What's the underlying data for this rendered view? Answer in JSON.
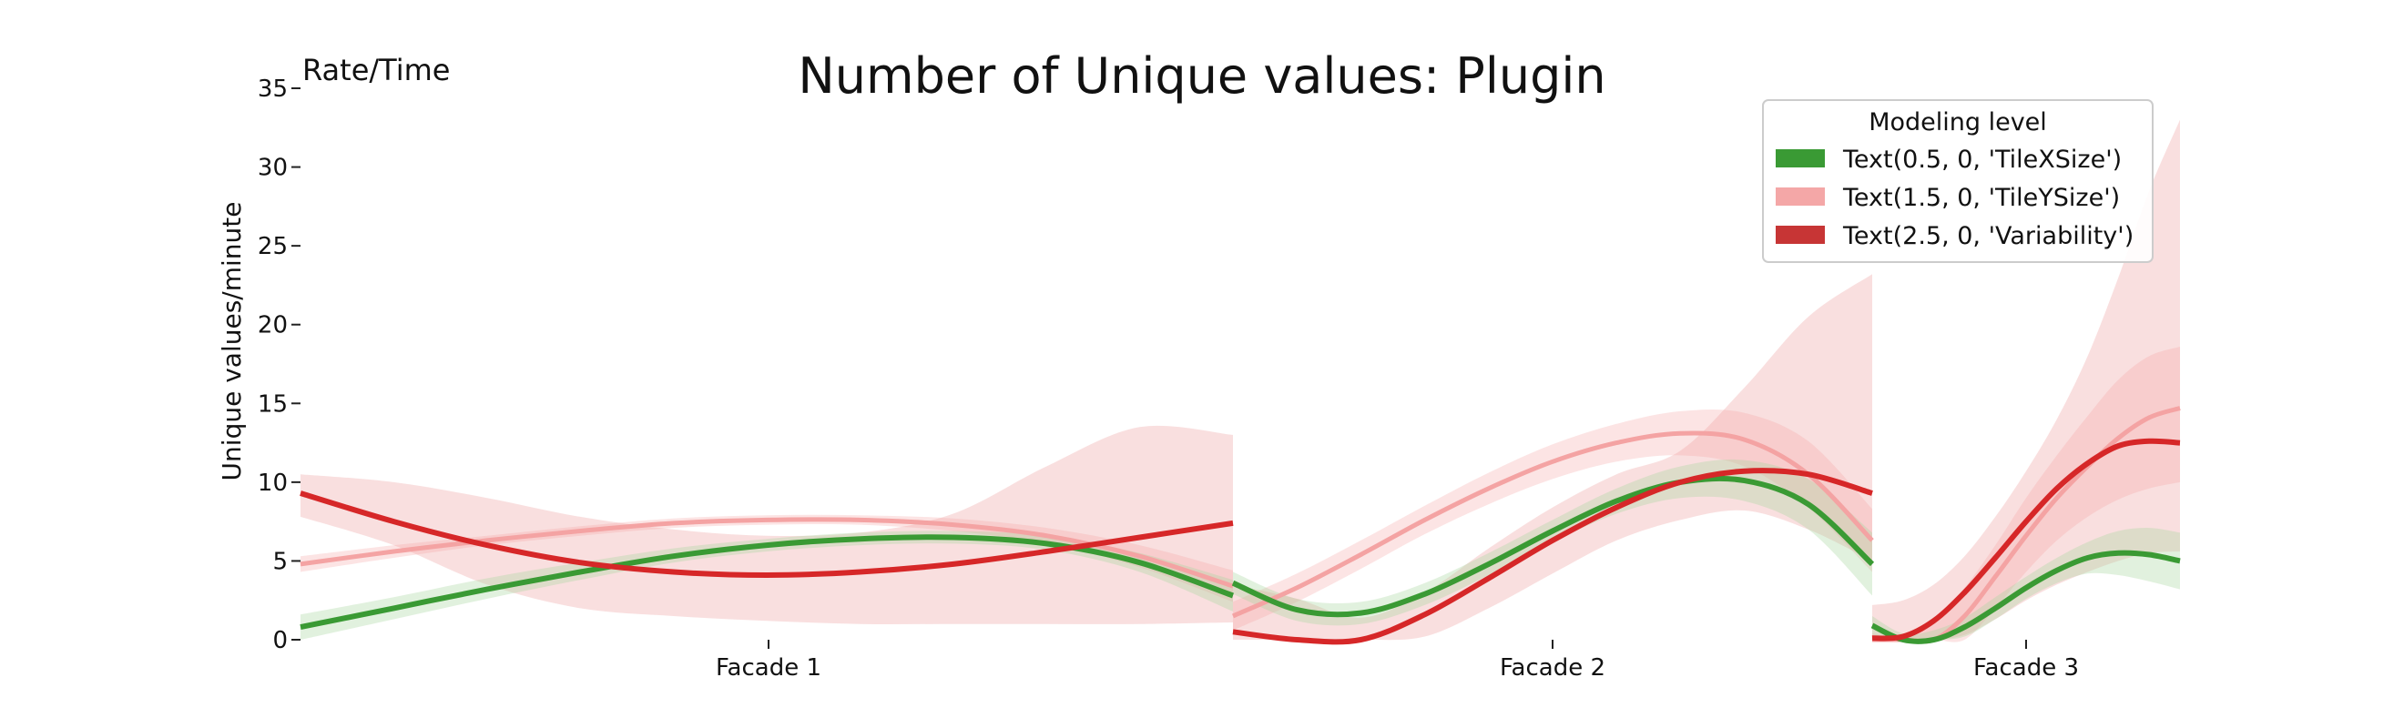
{
  "chart_data": {
    "type": "line",
    "title": "Number of Unique values: Plugin",
    "corner_label": "Rate/Time",
    "xlabel": "",
    "ylabel": "Unique values/minute",
    "ylim": [
      0,
      35
    ],
    "yticks": [
      0,
      5,
      10,
      15,
      20,
      25,
      30,
      35
    ],
    "grid": false,
    "legend": {
      "title": "Modeling level",
      "placement": "top-right",
      "entries": [
        "Text(0.5, 0, 'TileXSize')",
        "Text(1.5, 0, 'TileYSize')",
        "Text(2.5, 0, 'Variability')"
      ]
    },
    "colors": {
      "TileXSize": "#3a9a34",
      "TileYSize": "#f4a3a3",
      "Variability": "#d62728",
      "band_TileXSize": "#a8d8a0",
      "band_TileYSize": "#f4a7a7",
      "band_Variability": "#f2b8b8"
    },
    "facades": [
      {
        "label": "Facade 1",
        "series": [
          {
            "key": "TileXSize",
            "x": [
              0,
              0.1,
              0.2,
              0.3,
              0.4,
              0.5,
              0.6,
              0.7,
              0.8,
              0.9,
              1.0
            ],
            "y": [
              0.8,
              2.0,
              3.2,
              4.3,
              5.3,
              6.0,
              6.4,
              6.5,
              6.1,
              4.9,
              2.8
            ],
            "lo": [
              0.0,
              1.3,
              2.6,
              3.8,
              4.9,
              5.6,
              6.0,
              6.1,
              5.7,
              4.3,
              1.8
            ],
            "hi": [
              1.6,
              2.7,
              3.9,
              4.9,
              5.8,
              6.4,
              6.8,
              6.9,
              6.6,
              5.5,
              3.8
            ]
          },
          {
            "key": "TileYSize",
            "x": [
              0,
              0.1,
              0.2,
              0.3,
              0.4,
              0.5,
              0.6,
              0.7,
              0.8,
              0.9,
              1.0
            ],
            "y": [
              4.8,
              5.6,
              6.3,
              6.9,
              7.4,
              7.6,
              7.6,
              7.3,
              6.6,
              5.3,
              3.4
            ],
            "lo": [
              4.3,
              5.2,
              6.0,
              6.6,
              7.1,
              7.3,
              7.3,
              6.9,
              6.1,
              4.6,
              2.4
            ],
            "hi": [
              5.3,
              6.0,
              6.6,
              7.2,
              7.7,
              7.9,
              7.9,
              7.7,
              7.1,
              6.0,
              4.4
            ]
          },
          {
            "key": "Variability",
            "x": [
              0,
              0.1,
              0.2,
              0.3,
              0.4,
              0.5,
              0.6,
              0.7,
              0.8,
              0.9,
              1.0
            ],
            "y": [
              9.3,
              7.5,
              6.0,
              4.9,
              4.3,
              4.1,
              4.3,
              4.8,
              5.6,
              6.5,
              7.4
            ],
            "lo": [
              7.8,
              6.0,
              3.5,
              2.0,
              1.5,
              1.2,
              1.0,
              1.0,
              1.0,
              1.0,
              1.1
            ],
            "hi": [
              10.5,
              10.0,
              9.0,
              7.8,
              7.0,
              6.6,
              6.8,
              8.0,
              11.0,
              13.5,
              13.0
            ]
          }
        ]
      },
      {
        "label": "Facade 2",
        "series": [
          {
            "key": "TileXSize",
            "x": [
              0,
              0.1,
              0.2,
              0.3,
              0.4,
              0.5,
              0.6,
              0.7,
              0.8,
              0.9,
              1.0
            ],
            "y": [
              3.6,
              1.9,
              1.7,
              2.9,
              4.8,
              6.9,
              8.8,
              10.0,
              10.1,
              8.6,
              4.8
            ],
            "lo": [
              2.9,
              1.2,
              1.0,
              2.2,
              4.1,
              6.2,
              8.0,
              9.0,
              8.8,
              7.0,
              2.8
            ],
            "hi": [
              4.3,
              2.6,
              2.4,
              3.6,
              5.5,
              7.6,
              9.6,
              11.0,
              11.4,
              10.2,
              6.8
            ]
          },
          {
            "key": "TileYSize",
            "x": [
              0,
              0.1,
              0.2,
              0.3,
              0.4,
              0.5,
              0.6,
              0.7,
              0.8,
              0.9,
              1.0
            ],
            "y": [
              1.5,
              3.3,
              5.4,
              7.6,
              9.6,
              11.3,
              12.5,
              13.1,
              12.7,
              10.5,
              6.3
            ],
            "lo": [
              0.6,
              2.4,
              4.5,
              6.7,
              8.6,
              10.2,
              11.3,
              11.7,
              11.0,
              8.4,
              4.3
            ],
            "hi": [
              2.4,
              4.2,
              6.3,
              8.5,
              10.6,
              12.4,
              13.7,
              14.5,
              14.4,
              12.6,
              8.3
            ]
          },
          {
            "key": "Variability",
            "x": [
              0,
              0.1,
              0.2,
              0.3,
              0.4,
              0.5,
              0.6,
              0.7,
              0.8,
              0.9,
              1.0
            ],
            "y": [
              0.5,
              -0.6,
              -0.2,
              1.6,
              3.9,
              6.3,
              8.4,
              10.0,
              10.7,
              10.5,
              9.3
            ],
            "lo": [
              0.0,
              0.0,
              0.0,
              0.2,
              2.0,
              4.2,
              6.3,
              7.6,
              8.2,
              7.0,
              5.0
            ],
            "hi": [
              3.5,
              2.6,
              1.4,
              3.0,
              5.8,
              8.4,
              10.5,
              12.0,
              16.0,
              20.5,
              23.2
            ]
          }
        ]
      },
      {
        "label": "Facade 3",
        "series": [
          {
            "key": "TileXSize",
            "x": [
              0,
              0.1,
              0.2,
              0.3,
              0.4,
              0.5,
              0.6,
              0.7,
              0.8,
              0.9,
              1.0
            ],
            "y": [
              0.9,
              -0.2,
              0.0,
              0.8,
              2.0,
              3.3,
              4.4,
              5.2,
              5.5,
              5.4,
              5.0
            ],
            "lo": [
              0.3,
              0.0,
              0.0,
              0.2,
              1.3,
              2.6,
              3.6,
              4.2,
              4.1,
              3.7,
              3.2
            ],
            "hi": [
              1.5,
              0.4,
              0.6,
              1.4,
              2.7,
              4.0,
              5.2,
              6.2,
              6.9,
              7.1,
              6.8
            ]
          },
          {
            "key": "TileYSize",
            "x": [
              0,
              0.1,
              0.2,
              0.3,
              0.4,
              0.5,
              0.6,
              0.7,
              0.8,
              0.9,
              1.0
            ],
            "y": [
              -1.0,
              -1.5,
              -0.5,
              1.5,
              4.0,
              6.6,
              9.0,
              11.0,
              12.8,
              14.1,
              14.7
            ],
            "lo": [
              0.0,
              0.0,
              0.0,
              0.0,
              2.0,
              4.3,
              6.3,
              7.8,
              8.9,
              9.6,
              10.0
            ],
            "hi": [
              0.4,
              0.2,
              1.2,
              3.3,
              6.0,
              9.0,
              11.7,
              14.2,
              16.5,
              18.0,
              18.6
            ]
          },
          {
            "key": "Variability",
            "x": [
              0,
              0.1,
              0.2,
              0.3,
              0.4,
              0.5,
              0.6,
              0.7,
              0.8,
              0.9,
              1.0
            ],
            "y": [
              0.1,
              0.2,
              1.2,
              3.0,
              5.2,
              7.5,
              9.6,
              11.2,
              12.3,
              12.6,
              12.5
            ],
            "lo": [
              0.0,
              0.0,
              0.0,
              0.3,
              1.3,
              2.5,
              3.5,
              4.3,
              5.0,
              5.5,
              5.6
            ],
            "hi": [
              2.2,
              2.5,
              3.5,
              5.3,
              7.8,
              10.7,
              14.0,
              18.0,
              23.0,
              28.5,
              33.0
            ]
          }
        ]
      }
    ]
  }
}
